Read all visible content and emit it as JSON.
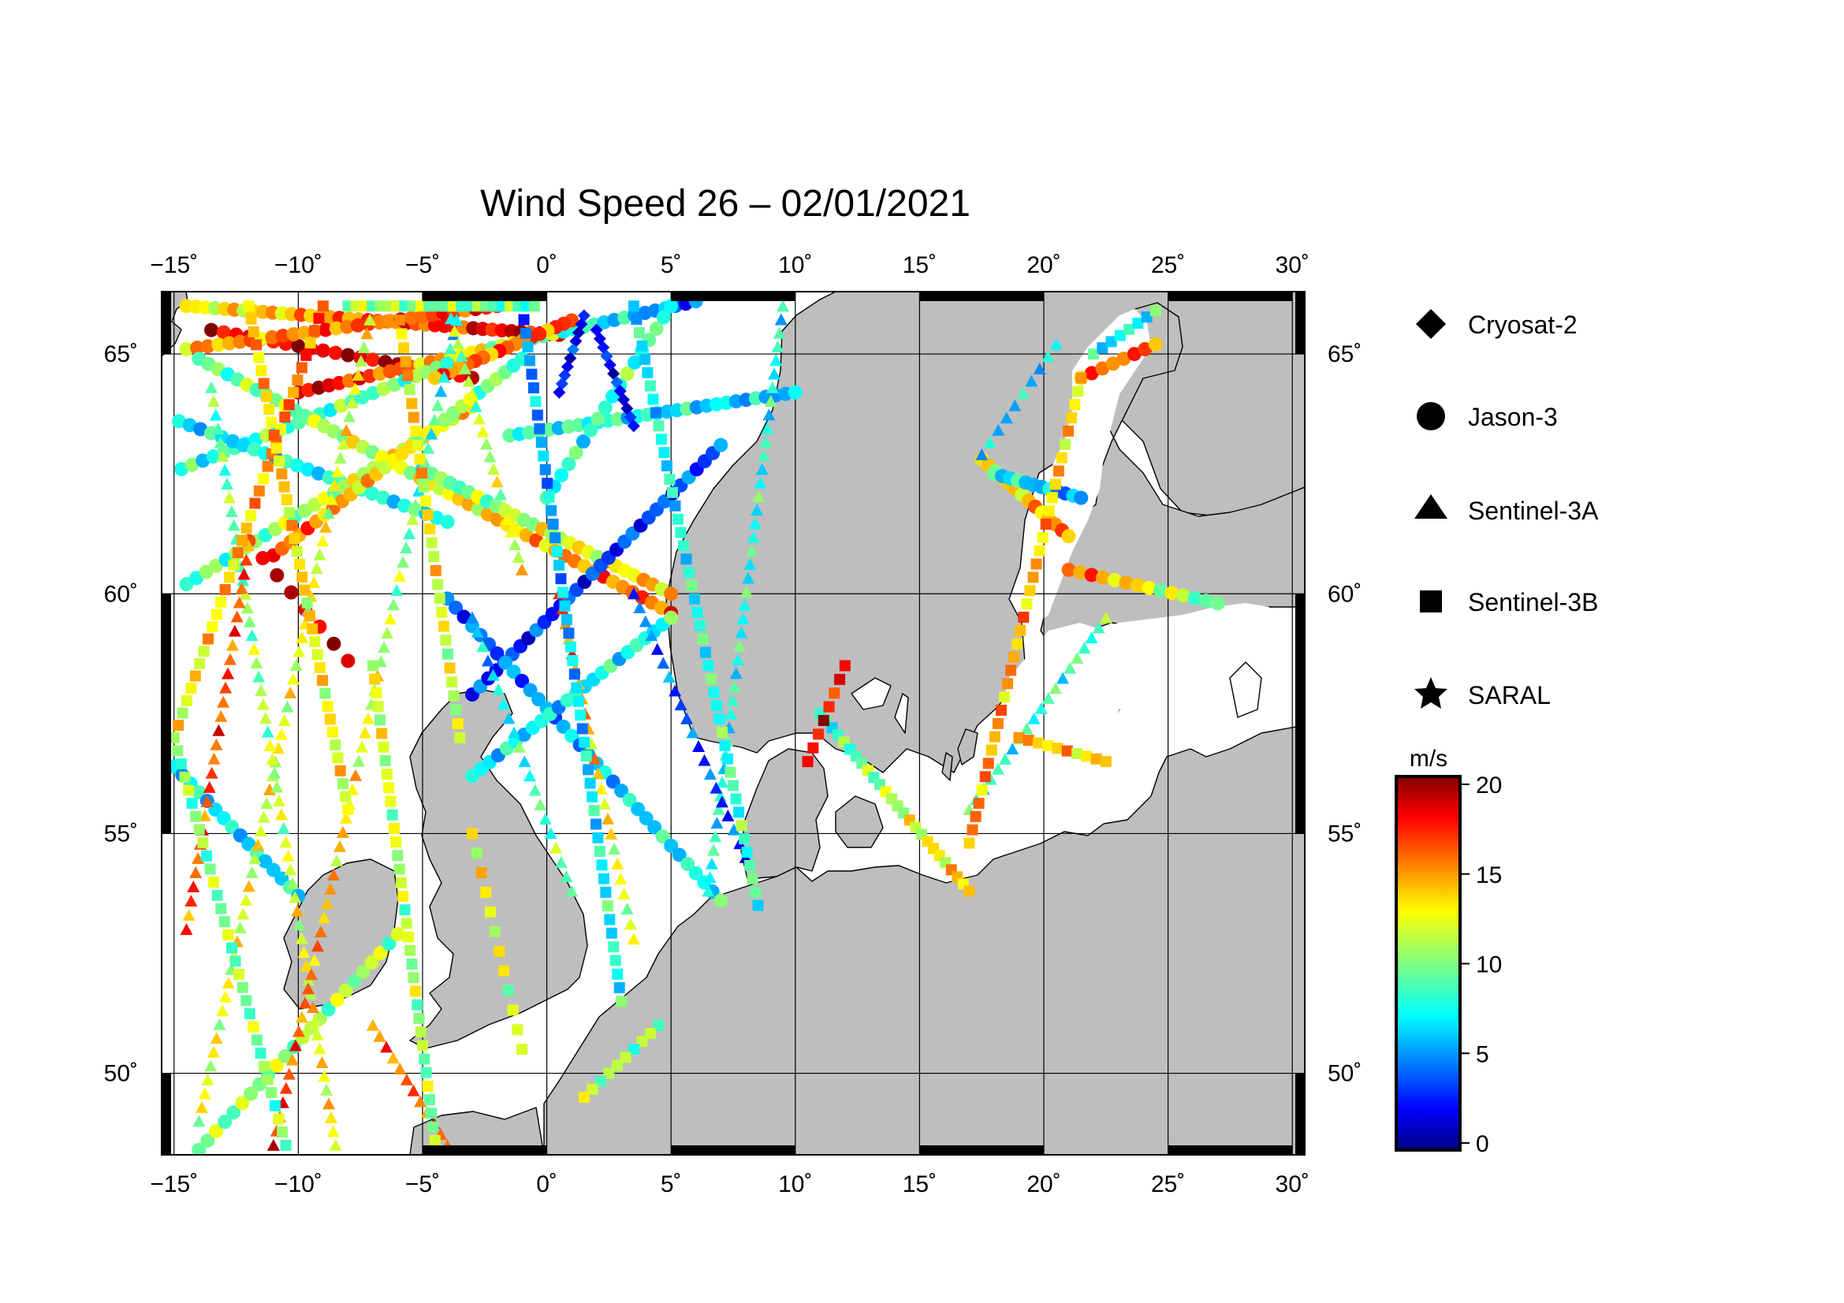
{
  "title": "Wind Speed 26 – 02/01/2021",
  "map": {
    "projection": "equirectangular",
    "lon_range": [
      -15.5,
      30.5
    ],
    "lat_range": [
      48.3,
      66.3
    ],
    "land_color": "#bebebe",
    "sea_color": "#ffffff",
    "grid": true,
    "lon_ticks": [
      -15,
      -10,
      -5,
      0,
      5,
      10,
      15,
      20,
      25,
      30
    ],
    "lon_tick_labels": [
      "−15˚",
      "−10˚",
      "−5˚",
      "0˚",
      "5˚",
      "10˚",
      "15˚",
      "20˚",
      "25˚",
      "30˚"
    ],
    "lat_ticks": [
      50,
      55,
      60,
      65
    ],
    "lat_tick_labels": [
      "50˚",
      "55˚",
      "60˚",
      "65˚"
    ]
  },
  "legend": {
    "placement": "right",
    "entries": [
      {
        "label": "Cryosat-2",
        "marker": "diamond"
      },
      {
        "label": "Jason-3",
        "marker": "circle"
      },
      {
        "label": "Sentinel-3A",
        "marker": "triangle"
      },
      {
        "label": "Sentinel-3B",
        "marker": "square"
      },
      {
        "label": "SARAL",
        "marker": "star"
      }
    ]
  },
  "colorbar": {
    "unit": "m/s",
    "min": 0,
    "max": 20,
    "tick_values": [
      0,
      5,
      10,
      15,
      20
    ],
    "tick_labels": [
      "0",
      "5",
      "10",
      "15",
      "20"
    ],
    "colormap": "jet"
  },
  "chart_data": {
    "type": "scatter",
    "x_axis": "longitude (deg)",
    "y_axis": "latitude (deg)",
    "value": "wind speed (m/s)",
    "tracks": [
      {
        "satellite": "Jason-3",
        "start": [
          -14.5,
          66.0
        ],
        "end": [
          0.5,
          65.4
        ],
        "n": 40,
        "speed_start": 12,
        "speed_end": 19
      },
      {
        "satellite": "Jason-3",
        "start": [
          -13.5,
          65.5
        ],
        "end": [
          -3.0,
          64.5
        ],
        "n": 22,
        "speed_start": 18,
        "speed_end": 19
      },
      {
        "satellite": "Jason-3",
        "start": [
          -10.0,
          64.2
        ],
        "end": [
          6.0,
          66.1
        ],
        "n": 40,
        "speed_start": 19,
        "speed_end": 4
      },
      {
        "satellite": "Jason-3",
        "start": [
          -14.5,
          65.1
        ],
        "end": [
          -2.0,
          66.0
        ],
        "n": 30,
        "speed_start": 14,
        "speed_end": 17
      },
      {
        "satellite": "Jason-3",
        "start": [
          -14.7,
          62.6
        ],
        "end": [
          -4.0,
          64.8
        ],
        "n": 26,
        "speed_start": 8,
        "speed_end": 10
      },
      {
        "satellite": "Jason-3",
        "start": [
          -14.8,
          63.6
        ],
        "end": [
          -4.0,
          61.5
        ],
        "n": 26,
        "speed_start": 7,
        "speed_end": 8
      },
      {
        "satellite": "Jason-3",
        "start": [
          -14.5,
          60.2
        ],
        "end": [
          -3.0,
          63.9
        ],
        "n": 30,
        "speed_start": 9,
        "speed_end": 13
      },
      {
        "satellite": "Jason-3",
        "start": [
          -14.0,
          64.9
        ],
        "end": [
          5.0,
          59.6
        ],
        "n": 50,
        "speed_start": 9,
        "speed_end": 16
      },
      {
        "satellite": "Jason-3",
        "start": [
          -11.0,
          60.8
        ],
        "end": [
          -1.0,
          64.9
        ],
        "n": 30,
        "speed_start": 16,
        "speed_end": 9
      },
      {
        "satellite": "Jason-3",
        "start": [
          -1.5,
          63.3
        ],
        "end": [
          10.0,
          64.2
        ],
        "n": 30,
        "speed_start": 9,
        "speed_end": 6
      },
      {
        "satellite": "Jason-3",
        "start": [
          -5.0,
          62.6
        ],
        "end": [
          5.0,
          60.0
        ],
        "n": 28,
        "speed_start": 9,
        "speed_end": 14
      },
      {
        "satellite": "Jason-3",
        "start": [
          -3.0,
          57.9
        ],
        "end": [
          7.0,
          63.1
        ],
        "n": 32,
        "speed_start": 3,
        "speed_end": 4
      },
      {
        "satellite": "Jason-3",
        "start": [
          -4.0,
          59.9
        ],
        "end": [
          7.0,
          53.6
        ],
        "n": 34,
        "speed_start": 4,
        "speed_end": 8
      },
      {
        "satellite": "Jason-3",
        "start": [
          -15.0,
          56.4
        ],
        "end": [
          -10.0,
          53.7
        ],
        "n": 16,
        "speed_start": 7,
        "speed_end": 7
      },
      {
        "satellite": "Jason-3",
        "start": [
          -14.0,
          48.4
        ],
        "end": [
          -6.0,
          52.9
        ],
        "n": 24,
        "speed_start": 10,
        "speed_end": 11
      },
      {
        "satellite": "Jason-3",
        "start": [
          -3.0,
          56.2
        ],
        "end": [
          5.0,
          59.5
        ],
        "n": 24,
        "speed_start": 7,
        "speed_end": 8
      },
      {
        "satellite": "Jason-3",
        "start": [
          0.0,
          62.0
        ],
        "end": [
          5.0,
          66.0
        ],
        "n": 18,
        "speed_start": 8,
        "speed_end": 9
      },
      {
        "satellite": "Jason-3",
        "start": [
          -12.0,
          61.1
        ],
        "end": [
          -8.0,
          58.6
        ],
        "n": 8,
        "speed_start": 18,
        "speed_end": 19
      },
      {
        "satellite": "Jason-3",
        "start": [
          21.5,
          64.5
        ],
        "end": [
          24.5,
          65.2
        ],
        "n": 8,
        "speed_start": 15,
        "speed_end": 16
      },
      {
        "satellite": "Jason-3",
        "start": [
          17.5,
          62.8
        ],
        "end": [
          21.0,
          61.2
        ],
        "n": 14,
        "speed_start": 12,
        "speed_end": 15
      },
      {
        "satellite": "Jason-3",
        "start": [
          18.0,
          62.5
        ],
        "end": [
          21.5,
          62.0
        ],
        "n": 12,
        "speed_start": 8,
        "speed_end": 5
      },
      {
        "satellite": "Jason-3",
        "start": [
          21.0,
          60.5
        ],
        "end": [
          27.0,
          59.8
        ],
        "n": 14,
        "speed_start": 16,
        "speed_end": 9
      },
      {
        "satellite": "Jason-3",
        "start": [
          1.0,
          65.7
        ],
        "end": [
          -4.5,
          64.5
        ],
        "n": 18,
        "speed_start": 16,
        "speed_end": 15
      },
      {
        "satellite": "Cryosat-2",
        "start": [
          1.5,
          65.8
        ],
        "end": [
          0.5,
          64.2
        ],
        "n": 10,
        "speed_start": 2,
        "speed_end": 3
      },
      {
        "satellite": "Cryosat-2",
        "start": [
          2.0,
          65.5
        ],
        "end": [
          3.5,
          63.5
        ],
        "n": 12,
        "speed_start": 3,
        "speed_end": 2
      },
      {
        "satellite": "Sentinel-3A",
        "start": [
          -14.0,
          49.0
        ],
        "end": [
          -7.0,
          66.0
        ],
        "n": 60,
        "speed_start": 12,
        "speed_end": 12
      },
      {
        "satellite": "Sentinel-3A",
        "start": [
          -13.5,
          64.3
        ],
        "end": [
          -8.5,
          48.5
        ],
        "n": 56,
        "speed_start": 9,
        "speed_end": 13
      },
      {
        "satellite": "Sentinel-3A",
        "start": [
          -11.0,
          48.5
        ],
        "end": [
          -3.5,
          66.0
        ],
        "n": 60,
        "speed_start": 17,
        "speed_end": 7
      },
      {
        "satellite": "Sentinel-3A",
        "start": [
          -4.0,
          66.0
        ],
        "end": [
          -1.0,
          60.5
        ],
        "n": 22,
        "speed_start": 10,
        "speed_end": 12
      },
      {
        "satellite": "Sentinel-3A",
        "start": [
          -3.0,
          59.5
        ],
        "end": [
          1.0,
          53.8
        ],
        "n": 20,
        "speed_start": 6,
        "speed_end": 10
      },
      {
        "satellite": "Sentinel-3A",
        "start": [
          0.5,
          60.0
        ],
        "end": [
          3.5,
          52.8
        ],
        "n": 24,
        "speed_start": 16,
        "speed_end": 11
      },
      {
        "satellite": "Sentinel-3A",
        "start": [
          6.5,
          53.8
        ],
        "end": [
          9.5,
          66.0
        ],
        "n": 44,
        "speed_start": 8,
        "speed_end": 8
      },
      {
        "satellite": "Sentinel-3A",
        "start": [
          3.5,
          60.0
        ],
        "end": [
          8.0,
          54.5
        ],
        "n": 20,
        "speed_start": 5,
        "speed_end": 3
      },
      {
        "satellite": "Sentinel-3A",
        "start": [
          17.5,
          62.9
        ],
        "end": [
          20.5,
          65.2
        ],
        "n": 10,
        "speed_start": 6,
        "speed_end": 7
      },
      {
        "satellite": "Sentinel-3A",
        "start": [
          17.0,
          55.5
        ],
        "end": [
          22.5,
          59.5
        ],
        "n": 20,
        "speed_start": 8,
        "speed_end": 9
      },
      {
        "satellite": "Sentinel-3A",
        "start": [
          -14.5,
          53.0
        ],
        "end": [
          -12.0,
          61.0
        ],
        "n": 28,
        "speed_start": 16,
        "speed_end": 16
      },
      {
        "satellite": "Sentinel-3A",
        "start": [
          -7.0,
          51.0
        ],
        "end": [
          -4.0,
          48.5
        ],
        "n": 12,
        "speed_start": 15,
        "speed_end": 16
      },
      {
        "satellite": "Sentinel-3B",
        "start": [
          -9.0,
          66.0
        ],
        "end": [
          -15.0,
          57.0
        ],
        "n": 36,
        "speed_start": 16,
        "speed_end": 12
      },
      {
        "satellite": "Sentinel-3B",
        "start": [
          -15.0,
          57.0
        ],
        "end": [
          -10.5,
          48.5
        ],
        "n": 32,
        "speed_start": 10,
        "speed_end": 10
      },
      {
        "satellite": "Sentinel-3B",
        "start": [
          -12.0,
          66.0
        ],
        "end": [
          -8.0,
          55.5
        ],
        "n": 40,
        "speed_start": 14,
        "speed_end": 12
      },
      {
        "satellite": "Sentinel-3B",
        "start": [
          -7.0,
          58.5
        ],
        "end": [
          -4.5,
          48.6
        ],
        "n": 36,
        "speed_start": 12,
        "speed_end": 10
      },
      {
        "satellite": "Sentinel-3B",
        "start": [
          -6.0,
          66.0
        ],
        "end": [
          -3.5,
          57.0
        ],
        "n": 32,
        "speed_start": 14,
        "speed_end": 11
      },
      {
        "satellite": "Sentinel-3B",
        "start": [
          -1.0,
          66.0
        ],
        "end": [
          3.0,
          51.5
        ],
        "n": 52,
        "speed_start": 5,
        "speed_end": 8
      },
      {
        "satellite": "Sentinel-3B",
        "start": [
          3.5,
          66.0
        ],
        "end": [
          8.5,
          53.5
        ],
        "n": 46,
        "speed_start": 7,
        "speed_end": 9
      },
      {
        "satellite": "Sentinel-3B",
        "start": [
          4.5,
          51.0
        ],
        "end": [
          1.5,
          49.5
        ],
        "n": 10,
        "speed_start": 10,
        "speed_end": 11
      },
      {
        "satellite": "Sentinel-3B",
        "start": [
          11.0,
          57.5
        ],
        "end": [
          17.0,
          53.8
        ],
        "n": 26,
        "speed_start": 8,
        "speed_end": 14
      },
      {
        "satellite": "Sentinel-3B",
        "start": [
          10.5,
          56.5
        ],
        "end": [
          12.0,
          58.5
        ],
        "n": 8,
        "speed_start": 18,
        "speed_end": 17
      },
      {
        "satellite": "Sentinel-3B",
        "start": [
          17.0,
          54.8
        ],
        "end": [
          21.5,
          64.5
        ],
        "n": 36,
        "speed_start": 15,
        "speed_end": 13
      },
      {
        "satellite": "Sentinel-3B",
        "start": [
          19.0,
          57.0
        ],
        "end": [
          22.5,
          56.5
        ],
        "n": 10,
        "speed_start": 14,
        "speed_end": 13
      },
      {
        "satellite": "Sentinel-3B",
        "start": [
          22.0,
          65.0
        ],
        "end": [
          24.5,
          65.9
        ],
        "n": 8,
        "speed_start": 7,
        "speed_end": 8
      },
      {
        "satellite": "Sentinel-3B",
        "start": [
          -3.0,
          55.0
        ],
        "end": [
          -1.0,
          50.5
        ],
        "n": 12,
        "speed_start": 13,
        "speed_end": 11
      },
      {
        "satellite": "Sentinel-3B",
        "start": [
          -8.0,
          66.0
        ],
        "end": [
          -0.5,
          66.0
        ],
        "n": 24,
        "speed_start": 11,
        "speed_end": 9
      }
    ]
  }
}
